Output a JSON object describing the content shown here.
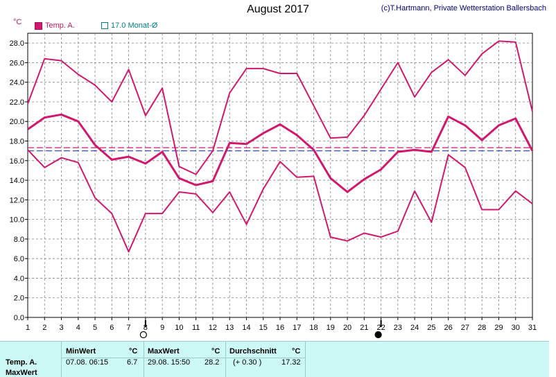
{
  "header": {
    "title": "August 2017",
    "copyright": "(c)T.Hartmann, Private Wetterstation Ballersbach",
    "unit": "°C"
  },
  "legend": {
    "temp_label": "Temp. A.",
    "avg_label": "17.0 Monat-Ø"
  },
  "colors": {
    "series": "#d0186c",
    "dashed_red": "#d0186c",
    "dashed_blue": "#3050d0",
    "grid": "#808080",
    "table_bg": "#ccf8f6"
  },
  "chart_data": {
    "type": "line",
    "title": "August 2017",
    "ylabel": "°C",
    "ylim": [
      0,
      29
    ],
    "yticks": [
      "0.0",
      "2.0",
      "4.0",
      "6.0",
      "8.0",
      "10.0",
      "12.0",
      "14.0",
      "16.0",
      "18.0",
      "20.0",
      "22.0",
      "24.0",
      "26.0",
      "28.0"
    ],
    "x": [
      1,
      2,
      3,
      4,
      5,
      6,
      7,
      8,
      9,
      10,
      11,
      12,
      13,
      14,
      15,
      16,
      17,
      18,
      19,
      20,
      21,
      22,
      23,
      24,
      25,
      26,
      27,
      28,
      29,
      30,
      31
    ],
    "series": [
      {
        "role": "max",
        "values": [
          21.8,
          26.4,
          26.2,
          24.8,
          23.7,
          22.0,
          25.3,
          20.6,
          23.4,
          15.4,
          14.6,
          17.0,
          22.9,
          25.4,
          25.4,
          24.9,
          24.9,
          21.6,
          18.3,
          18.4,
          20.6,
          23.3,
          26.0,
          22.5,
          25.0,
          26.3,
          24.7,
          26.9,
          28.2,
          28.1,
          21.0
        ]
      },
      {
        "role": "mean",
        "values": [
          19.2,
          20.4,
          20.7,
          20.0,
          17.6,
          16.1,
          16.4,
          15.7,
          16.9,
          14.2,
          13.5,
          13.9,
          17.8,
          17.7,
          18.8,
          19.7,
          18.6,
          17.1,
          14.2,
          12.8,
          14.1,
          15.1,
          16.9,
          17.1,
          16.9,
          20.5,
          19.6,
          18.1,
          19.6,
          20.3,
          17.0
        ]
      },
      {
        "role": "min",
        "values": [
          17.1,
          15.3,
          16.3,
          15.8,
          12.2,
          10.6,
          6.7,
          10.6,
          10.6,
          12.8,
          12.6,
          10.7,
          12.8,
          9.5,
          13.1,
          15.9,
          14.3,
          14.4,
          8.2,
          7.8,
          8.6,
          8.2,
          8.8,
          12.9,
          9.7,
          16.6,
          15.3,
          11.0,
          11.0,
          12.9,
          11.6
        ]
      }
    ],
    "reference_lines": [
      {
        "value": 17.32,
        "style": "dashed",
        "color": "#d0186c"
      },
      {
        "value": 17.0,
        "style": "dashed",
        "color": "#3050d0"
      }
    ],
    "moon_markers": [
      {
        "day": 8,
        "phase": "full"
      },
      {
        "day": 22,
        "phase": "new"
      }
    ],
    "grid": true
  },
  "summary": {
    "row_label": "Temp. A.",
    "row_label2": "MaxWert",
    "min_header": "MinWert",
    "min_unit": "°C",
    "min_time": "07.08.  06:15",
    "min_value": "6.7",
    "max_header": "MaxWert",
    "max_unit": "°C",
    "max_time": "29.08.  15:50",
    "max_value": "28.2",
    "avg_header": "Durchschnitt",
    "avg_unit": "°C",
    "avg_delta": "(+ 0.30 )",
    "avg_value": "17.32"
  }
}
